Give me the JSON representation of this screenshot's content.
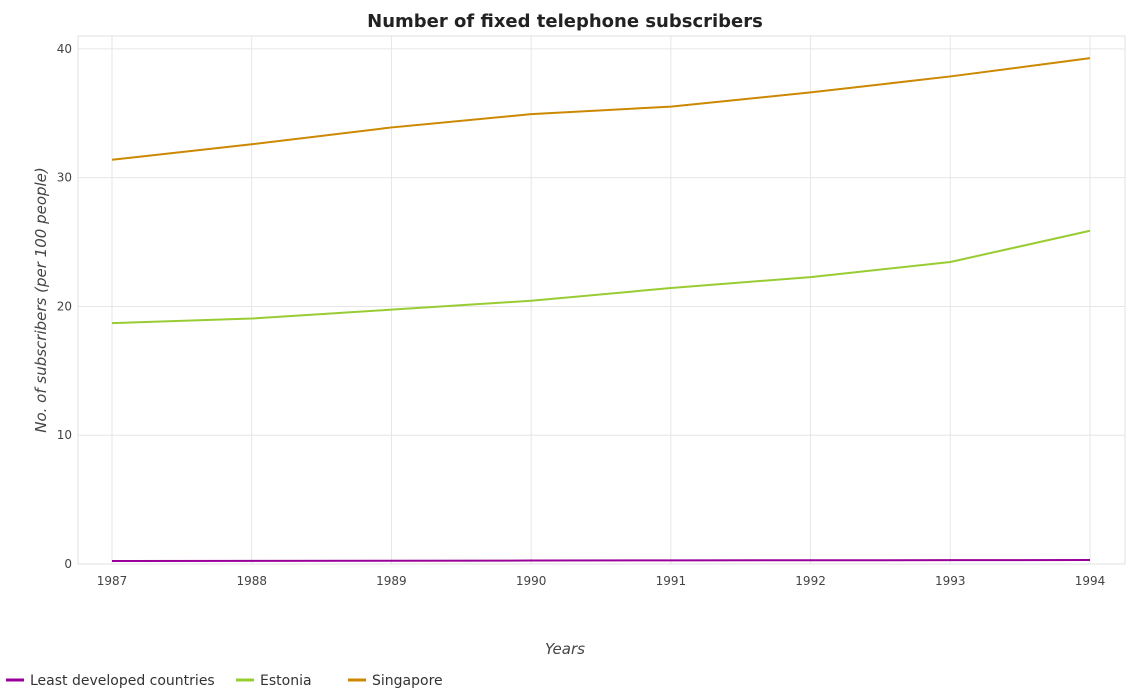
{
  "chart_data": {
    "type": "line",
    "title": "Number of fixed telephone subscribers",
    "xlabel": "Years",
    "ylabel": "No. of subscribers (per 100 people)",
    "categories": [
      "1987",
      "1988",
      "1989",
      "1990",
      "1991",
      "1992",
      "1993",
      "1994"
    ],
    "ylim": [
      0,
      41
    ],
    "yticks": [
      "0",
      "10",
      "20",
      "30",
      "40"
    ],
    "grid": true,
    "legend_position": "bottom-left",
    "series": [
      {
        "name": "Least developed countries",
        "color": "#990099",
        "values": [
          0.23,
          0.24,
          0.25,
          0.27,
          0.28,
          0.29,
          0.3,
          0.31
        ]
      },
      {
        "name": "Estonia",
        "color": "#99cc33",
        "values": [
          18.7,
          19.06,
          19.75,
          20.44,
          21.43,
          22.28,
          23.45,
          25.88
        ]
      },
      {
        "name": "Singapore",
        "color": "#cc8800",
        "values": [
          31.39,
          32.59,
          33.9,
          34.93,
          35.52,
          36.62,
          37.86,
          39.28
        ]
      }
    ]
  }
}
